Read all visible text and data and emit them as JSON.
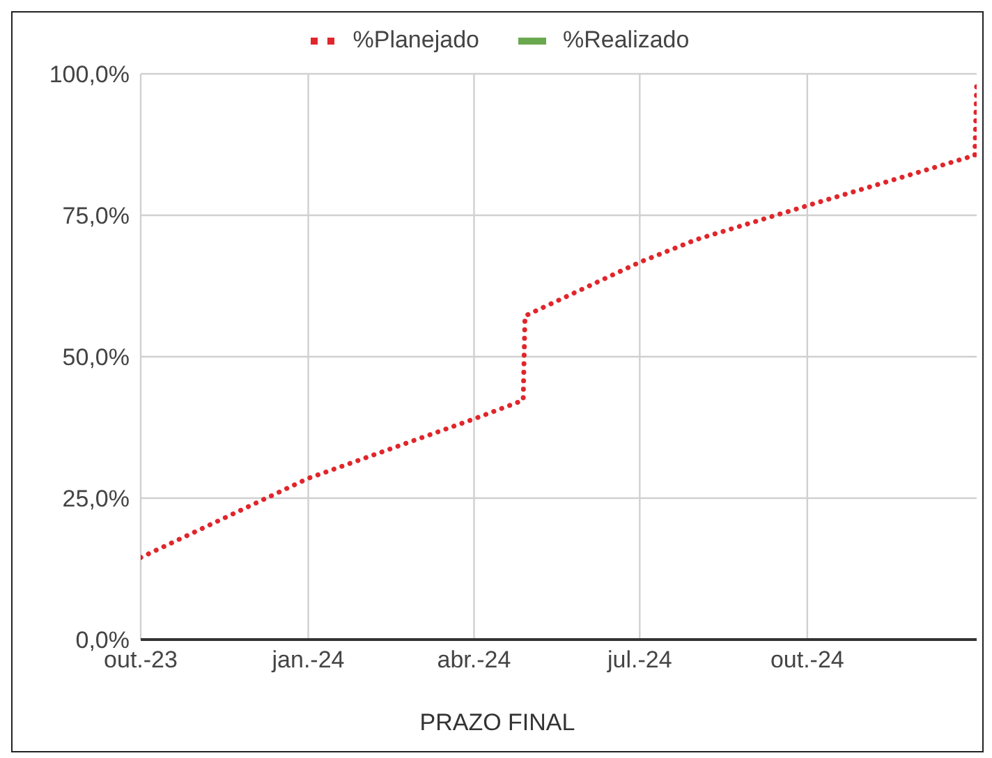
{
  "chart_data": {
    "type": "line",
    "xlabel": "PRAZO FINAL",
    "x": [
      "2023-10-01",
      "2024-01-01",
      "2024-04-01",
      "2024-04-28",
      "2024-04-29",
      "2024-07-01",
      "2024-08-01",
      "2024-10-01",
      "2025-01-01",
      "2025-01-02"
    ],
    "series": [
      {
        "name": "%Planejado",
        "color": "#e0262b",
        "line_style": "dotted",
        "values": [
          14.5,
          28.5,
          39,
          42.3,
          57.2,
          66.7,
          70.7,
          76.7,
          85.6,
          98
        ]
      },
      {
        "name": "%Realizado",
        "color": "#6aa84f",
        "line_style": "solid",
        "values": [
          null,
          null,
          null,
          null,
          null,
          null,
          null,
          null,
          null,
          null
        ]
      }
    ],
    "xlim": [
      "2023-10-01",
      "2025-01-02"
    ],
    "xticks": [
      {
        "value": "2023-10-01",
        "label": "out.-23"
      },
      {
        "value": "2024-01-01",
        "label": "jan.-24"
      },
      {
        "value": "2024-04-01",
        "label": "abr.-24"
      },
      {
        "value": "2024-07-01",
        "label": "jul.-24"
      },
      {
        "value": "2024-10-01",
        "label": "out.-24"
      }
    ],
    "ylim": [
      0,
      100
    ],
    "yticks": [
      {
        "value": 0,
        "label": "0,0%"
      },
      {
        "value": 25,
        "label": "25,0%"
      },
      {
        "value": 50,
        "label": "50,0%"
      },
      {
        "value": 75,
        "label": "75,0%"
      },
      {
        "value": 100,
        "label": "100,0%"
      }
    ],
    "grid": true,
    "legend": "top",
    "marker": "none"
  }
}
